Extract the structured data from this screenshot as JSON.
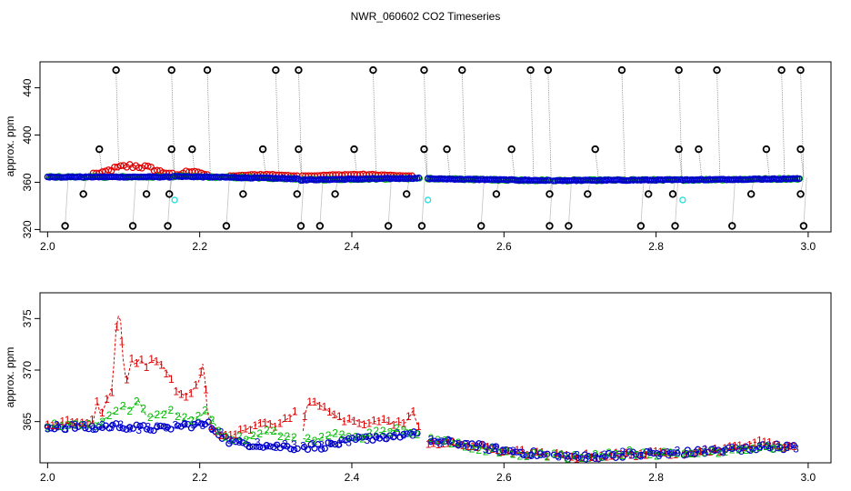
{
  "title": "NWR_060602  CO2 Timeseries",
  "colors": {
    "red": "#dd0000",
    "green": "#00bb00",
    "blue": "#0000cc",
    "black": "#000000",
    "cyan": "#22dddd",
    "grey": "#888888"
  },
  "chart_data": [
    {
      "id": "top",
      "type": "scatter",
      "ylabel": "approx. ppm",
      "xlim": [
        1.99,
        3.03
      ],
      "ylim": [
        318,
        462
      ],
      "xticks": [
        2.0,
        2.2,
        2.4,
        2.6,
        2.8,
        3.0
      ],
      "xtick_labels": [
        "2.0",
        "2.2",
        "2.4",
        "2.6",
        "2.8",
        "3.0"
      ],
      "yticks": [
        320,
        360,
        400,
        440
      ],
      "ytick_labels": [
        "320",
        "360",
        "400",
        "440"
      ],
      "baseline_segments": [
        {
          "x0": 2.0,
          "x1": 2.165,
          "y0": 364.5,
          "y1": 364.5
        },
        {
          "x0": 2.167,
          "x1": 2.33,
          "y0": 365.0,
          "y1": 363.0
        },
        {
          "x0": 2.333,
          "x1": 2.49,
          "y0": 362.0,
          "y1": 363.5
        },
        {
          "x0": 2.5,
          "x1": 2.66,
          "y0": 363.0,
          "y1": 361.5
        },
        {
          "x0": 2.665,
          "x1": 2.83,
          "y0": 361.5,
          "y1": 362.0
        },
        {
          "x0": 2.833,
          "x1": 2.99,
          "y0": 362.0,
          "y1": 363.0
        }
      ],
      "red_bumps": [
        {
          "x0": 2.06,
          "x1": 2.165,
          "peak": 376
        },
        {
          "x0": 2.17,
          "x1": 2.21,
          "peak": 371
        },
        {
          "x0": 2.24,
          "x1": 2.33,
          "peak": 367
        },
        {
          "x0": 2.335,
          "x1": 2.48,
          "peak": 367
        }
      ],
      "spikes_high": [
        2.09,
        2.163,
        2.21,
        2.3,
        2.33,
        2.428,
        2.495,
        2.545,
        2.635,
        2.658,
        2.755,
        2.83,
        2.88,
        2.965,
        2.99
      ],
      "spikes_mid": [
        2.068,
        2.163,
        2.19,
        2.283,
        2.33,
        2.403,
        2.495,
        2.525,
        2.61,
        2.72,
        2.83,
        2.856,
        2.945,
        2.99
      ],
      "spikes_low1": [
        2.047,
        2.13,
        2.16,
        2.257,
        2.328,
        2.378,
        2.472,
        2.59,
        2.66,
        2.71,
        2.79,
        2.822,
        2.925,
        2.99
      ],
      "spikes_low2": [
        2.023,
        2.112,
        2.158,
        2.235,
        2.333,
        2.358,
        2.448,
        2.492,
        2.57,
        2.66,
        2.685,
        2.78,
        2.825,
        2.9,
        2.994
      ],
      "cyan_points": [
        {
          "x": 2.167,
          "y": 345
        },
        {
          "x": 2.5,
          "y": 345
        },
        {
          "x": 2.835,
          "y": 345
        }
      ]
    },
    {
      "id": "bottom",
      "type": "scatter",
      "ylabel": "approx. ppm",
      "xlim": [
        1.99,
        3.03
      ],
      "ylim": [
        361,
        377.5
      ],
      "xticks": [
        2.0,
        2.2,
        2.4,
        2.6,
        2.8,
        3.0
      ],
      "xtick_labels": [
        "2.0",
        "2.2",
        "2.4",
        "2.6",
        "2.8",
        "3.0"
      ],
      "yticks": [
        365,
        370,
        375
      ],
      "ytick_labels": [
        "365",
        "370",
        "375"
      ],
      "series": [
        {
          "name": "1",
          "symbol": "1",
          "color": "#dd0000",
          "x": [
            2.0,
            2.02,
            2.04,
            2.05,
            2.06,
            2.065,
            2.07,
            2.08,
            2.085,
            2.09,
            2.095,
            2.1,
            2.105,
            2.11,
            2.115,
            2.12,
            2.13,
            2.14,
            2.15,
            2.16,
            2.17,
            2.18,
            2.19,
            2.2,
            2.205,
            2.21,
            2.215,
            2.22,
            2.23,
            2.24,
            2.25,
            2.26,
            2.27,
            2.28,
            2.29,
            2.3,
            2.31,
            2.32,
            2.33,
            2.335,
            2.34,
            2.35,
            2.36,
            2.37,
            2.38,
            2.39,
            2.4,
            2.41,
            2.42,
            2.43,
            2.44,
            2.45,
            2.46,
            2.47,
            2.48,
            2.49,
            2.5,
            2.55,
            2.6,
            2.65,
            2.7,
            2.75,
            2.8,
            2.85,
            2.9,
            2.93,
            2.96,
            2.985
          ],
          "y": [
            364.5,
            365.0,
            364.8,
            365.0,
            365.0,
            367.0,
            365.5,
            367.5,
            368.0,
            374.0,
            376.0,
            370.0,
            369.0,
            371.0,
            370.5,
            371.0,
            370.5,
            371.0,
            370.5,
            369.5,
            368.0,
            367.5,
            368.0,
            369.0,
            371.0,
            366.0,
            364.5,
            364.0,
            363.8,
            363.5,
            364.0,
            364.2,
            364.5,
            365.0,
            365.0,
            364.5,
            365.0,
            365.5,
            366.0,
            363.5,
            366.5,
            367.0,
            366.5,
            366.0,
            365.5,
            365.0,
            365.2,
            365.0,
            364.8,
            365.0,
            365.2,
            364.8,
            365.0,
            364.8,
            366.0,
            364.0,
            363.0,
            362.7,
            362.2,
            361.8,
            361.6,
            361.8,
            361.9,
            362.1,
            362.4,
            363.0,
            362.8,
            362.5
          ]
        },
        {
          "name": "2",
          "symbol": "2",
          "color": "#00bb00",
          "x": [
            2.0,
            2.03,
            2.06,
            2.08,
            2.09,
            2.1,
            2.11,
            2.12,
            2.13,
            2.14,
            2.15,
            2.16,
            2.18,
            2.2,
            2.21,
            2.23,
            2.26,
            2.29,
            2.32,
            2.35,
            2.38,
            2.41,
            2.44,
            2.47,
            2.5,
            2.54,
            2.58,
            2.62,
            2.66,
            2.7,
            2.74,
            2.78,
            2.82,
            2.86,
            2.9,
            2.94,
            2.98
          ],
          "y": [
            364.5,
            364.8,
            364.6,
            365.5,
            366.0,
            366.5,
            366.2,
            367.0,
            365.5,
            365.5,
            365.8,
            366.2,
            365.2,
            365.5,
            366.0,
            363.5,
            363.3,
            364.0,
            363.5,
            363.2,
            363.8,
            363.5,
            364.0,
            364.3,
            363.2,
            362.8,
            362.3,
            361.9,
            361.7,
            361.6,
            361.9,
            362.0,
            361.8,
            362.0,
            362.3,
            362.6,
            362.4
          ]
        },
        {
          "name": "3",
          "symbol": "3",
          "color": "#0000cc",
          "x": [
            2.0,
            2.03,
            2.06,
            2.09,
            2.12,
            2.15,
            2.18,
            2.21,
            2.24,
            2.27,
            2.3,
            2.33,
            2.36,
            2.39,
            2.42,
            2.45,
            2.48,
            2.5,
            2.55,
            2.6,
            2.65,
            2.7,
            2.75,
            2.8,
            2.85,
            2.9,
            2.95,
            2.985
          ],
          "y": [
            364.5,
            364.5,
            364.4,
            364.6,
            364.4,
            364.3,
            364.6,
            364.8,
            363.0,
            362.8,
            362.6,
            362.5,
            362.6,
            363.0,
            363.4,
            363.6,
            363.8,
            363.2,
            362.8,
            362.2,
            361.8,
            361.5,
            361.8,
            361.9,
            362.0,
            362.3,
            362.6,
            362.5
          ]
        }
      ]
    }
  ]
}
